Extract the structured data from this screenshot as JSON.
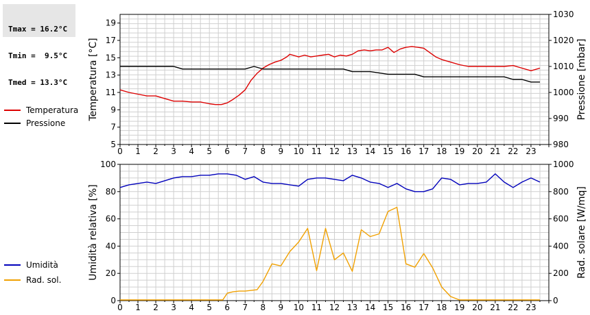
{
  "stats": {
    "tmax": "Tmax = 16.2°C",
    "tmin": "Tmin =  9.5°C",
    "tmed": "Tmed = 13.3°C"
  },
  "colors": {
    "temperature": "#dd0000",
    "pressure": "#000000",
    "humidity": "#0000bb",
    "radiation": "#f0a000",
    "grid": "#cfcfcf"
  },
  "chart_data": [
    {
      "type": "line",
      "x_ticks": [
        "0",
        "1",
        "2",
        "3",
        "4",
        "5",
        "6",
        "7",
        "8",
        "9",
        "10",
        "11",
        "12",
        "13",
        "14",
        "15",
        "16",
        "17",
        "18",
        "19",
        "20",
        "21",
        "22",
        "23"
      ],
      "xlim": [
        0,
        24
      ],
      "ylabel": "Temperatura [°C]",
      "ylabel_right": "Pressione [mbar]",
      "ylim": [
        5,
        20
      ],
      "y_ticks": [
        "5",
        "7",
        "9",
        "11",
        "13",
        "15",
        "17",
        "19"
      ],
      "ylim_right": [
        980,
        1030
      ],
      "y_ticks_right": [
        "980",
        "990",
        "1000",
        "1010",
        "1020",
        "1030"
      ],
      "legend": [
        "Temperatura",
        "Pressione"
      ],
      "series": [
        {
          "name": "Temperatura",
          "axis": "left",
          "x": [
            0,
            0.5,
            1,
            1.5,
            2,
            2.5,
            3,
            3.5,
            4,
            4.5,
            5,
            5.33,
            5.67,
            6,
            6.33,
            6.67,
            7,
            7.33,
            7.67,
            8,
            8.33,
            8.67,
            9,
            9.33,
            9.5,
            9.67,
            10,
            10.33,
            10.67,
            11,
            11.33,
            11.67,
            12,
            12.33,
            12.67,
            13,
            13.33,
            13.67,
            14,
            14.33,
            14.67,
            15,
            15.33,
            15.67,
            16,
            16.33,
            16.67,
            17,
            17.33,
            17.67,
            18,
            18.5,
            19,
            19.5,
            20,
            20.5,
            21,
            21.5,
            22,
            22.5,
            23,
            23.5
          ],
          "y": [
            11.3,
            11,
            10.8,
            10.6,
            10.6,
            10.3,
            10,
            10,
            9.9,
            9.9,
            9.7,
            9.6,
            9.6,
            9.8,
            10.2,
            10.7,
            11.3,
            12.4,
            13.2,
            13.8,
            14.2,
            14.5,
            14.7,
            15.1,
            15.4,
            15.3,
            15.1,
            15.3,
            15.1,
            15.2,
            15.3,
            15.4,
            15.1,
            15.3,
            15.2,
            15.4,
            15.8,
            15.9,
            15.8,
            15.9,
            15.9,
            16.2,
            15.6,
            16,
            16.2,
            16.3,
            16.2,
            16.1,
            15.6,
            15.1,
            14.8,
            14.5,
            14.2,
            14,
            14,
            14,
            14,
            14,
            14.1,
            13.8,
            13.5,
            13.8
          ]
        },
        {
          "name": "Pressione",
          "axis": "right",
          "x": [
            0,
            1,
            2,
            3,
            3.5,
            4,
            5,
            6,
            7,
            7.5,
            8,
            9,
            10,
            11,
            12,
            12.5,
            13,
            14,
            15,
            16,
            16.5,
            17,
            18,
            19,
            20,
            21,
            21.5,
            22,
            22.5,
            23,
            23.5
          ],
          "y": [
            1010,
            1010,
            1010,
            1010,
            1009,
            1009,
            1009,
            1009,
            1009,
            1010,
            1009,
            1009,
            1009,
            1009,
            1009,
            1009,
            1008,
            1008,
            1007,
            1007,
            1007,
            1006,
            1006,
            1006,
            1006,
            1006,
            1006,
            1005,
            1005,
            1004,
            1004
          ]
        }
      ]
    },
    {
      "type": "line",
      "x_ticks": [
        "0",
        "1",
        "2",
        "3",
        "4",
        "5",
        "6",
        "7",
        "8",
        "9",
        "10",
        "11",
        "12",
        "13",
        "14",
        "15",
        "16",
        "17",
        "18",
        "19",
        "20",
        "21",
        "22",
        "23"
      ],
      "xlim": [
        0,
        24
      ],
      "ylabel": "Umidità relativa [%]",
      "ylabel_right": "Rad. solare [W/mq]",
      "ylim": [
        0,
        100
      ],
      "y_ticks": [
        "0",
        "20",
        "40",
        "60",
        "80",
        "100"
      ],
      "ylim_right": [
        0,
        1000
      ],
      "y_ticks_right": [
        "0",
        "200",
        "400",
        "600",
        "800",
        "1000"
      ],
      "legend": [
        "Umidità",
        "Rad. sol."
      ],
      "series": [
        {
          "name": "Umidità",
          "axis": "left",
          "x": [
            0,
            0.5,
            1,
            1.5,
            2,
            2.5,
            3,
            3.5,
            4,
            4.5,
            5,
            5.5,
            6,
            6.5,
            7,
            7.5,
            8,
            8.5,
            9,
            9.5,
            10,
            10.5,
            11,
            11.5,
            12,
            12.5,
            13,
            13.5,
            14,
            14.5,
            15,
            15.5,
            16,
            16.5,
            17,
            17.5,
            18,
            18.5,
            19,
            19.5,
            20,
            20.5,
            21,
            21.5,
            22,
            22.5,
            23,
            23.5
          ],
          "y": [
            83,
            85,
            86,
            87,
            86,
            88,
            90,
            91,
            91,
            92,
            92,
            93,
            93,
            92,
            89,
            91,
            87,
            86,
            86,
            85,
            84,
            89,
            90,
            90,
            89,
            88,
            92,
            90,
            87,
            86,
            83,
            86,
            82,
            80,
            80,
            82,
            90,
            89,
            85,
            86,
            86,
            87,
            93,
            87,
            83,
            87,
            90,
            87
          ]
        },
        {
          "name": "Rad. sol.",
          "axis": "right",
          "x": [
            0,
            1,
            2,
            3,
            4,
            5,
            5.5,
            5.75,
            6,
            6.33,
            6.67,
            7,
            7.33,
            7.67,
            8,
            8.5,
            9,
            9.5,
            10,
            10.5,
            11,
            11.5,
            12,
            12.5,
            13,
            13.5,
            14,
            14.5,
            15,
            15.5,
            16,
            16.5,
            17,
            17.5,
            18,
            18.5,
            19,
            19.5,
            20,
            21,
            22,
            23,
            23.5
          ],
          "y": [
            5,
            5,
            5,
            5,
            5,
            5,
            5,
            5,
            55,
            65,
            70,
            70,
            75,
            80,
            140,
            270,
            255,
            360,
            430,
            530,
            220,
            530,
            300,
            350,
            215,
            520,
            470,
            490,
            655,
            685,
            270,
            245,
            345,
            240,
            100,
            30,
            5,
            5,
            5,
            5,
            5,
            5,
            5
          ]
        }
      ]
    }
  ]
}
